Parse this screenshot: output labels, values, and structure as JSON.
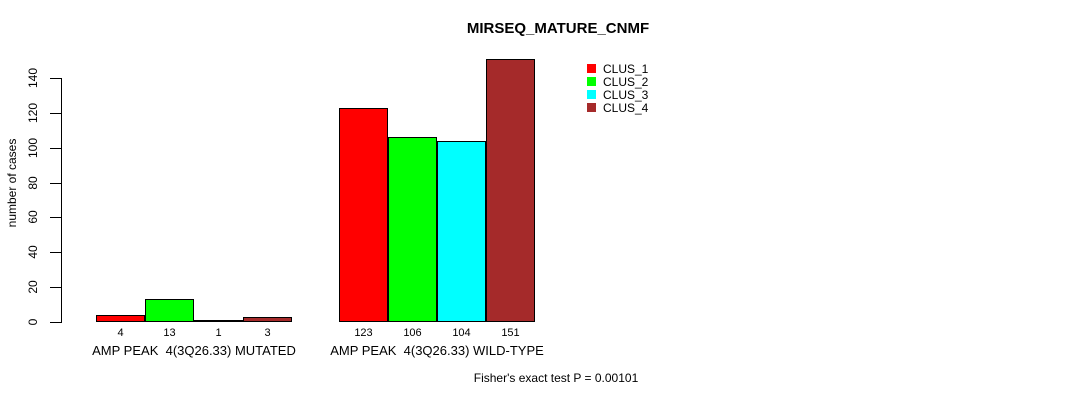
{
  "chart_data": {
    "type": "bar",
    "title": "MIRSEQ_MATURE_CNMF",
    "ylabel": "number of cases",
    "xlabel": "",
    "ylim": [
      0,
      140
    ],
    "yticks": [
      0,
      20,
      40,
      60,
      80,
      100,
      120,
      140
    ],
    "grid": false,
    "legend_position": "top-right",
    "categories": [
      "AMP PEAK  4(3Q26.33) MUTATED",
      "AMP PEAK  4(3Q26.33) WILD-TYPE"
    ],
    "series": [
      {
        "name": "CLUS_1",
        "color": "#FF0000",
        "values": [
          4,
          123
        ]
      },
      {
        "name": "CLUS_2",
        "color": "#00FF00",
        "values": [
          13,
          106
        ]
      },
      {
        "name": "CLUS_3",
        "color": "#00FFFF",
        "values": [
          1,
          104
        ]
      },
      {
        "name": "CLUS_4",
        "color": "#A52A2A",
        "values": [
          3,
          151
        ]
      }
    ],
    "bar_value_labels": [
      [
        "4",
        "13",
        "1",
        "3"
      ],
      [
        "123",
        "106",
        "104",
        "151"
      ]
    ],
    "footnote": "Fisher's exact test P = 0.00101",
    "axis_color": "#000000",
    "bar_border_color": "#000000"
  }
}
